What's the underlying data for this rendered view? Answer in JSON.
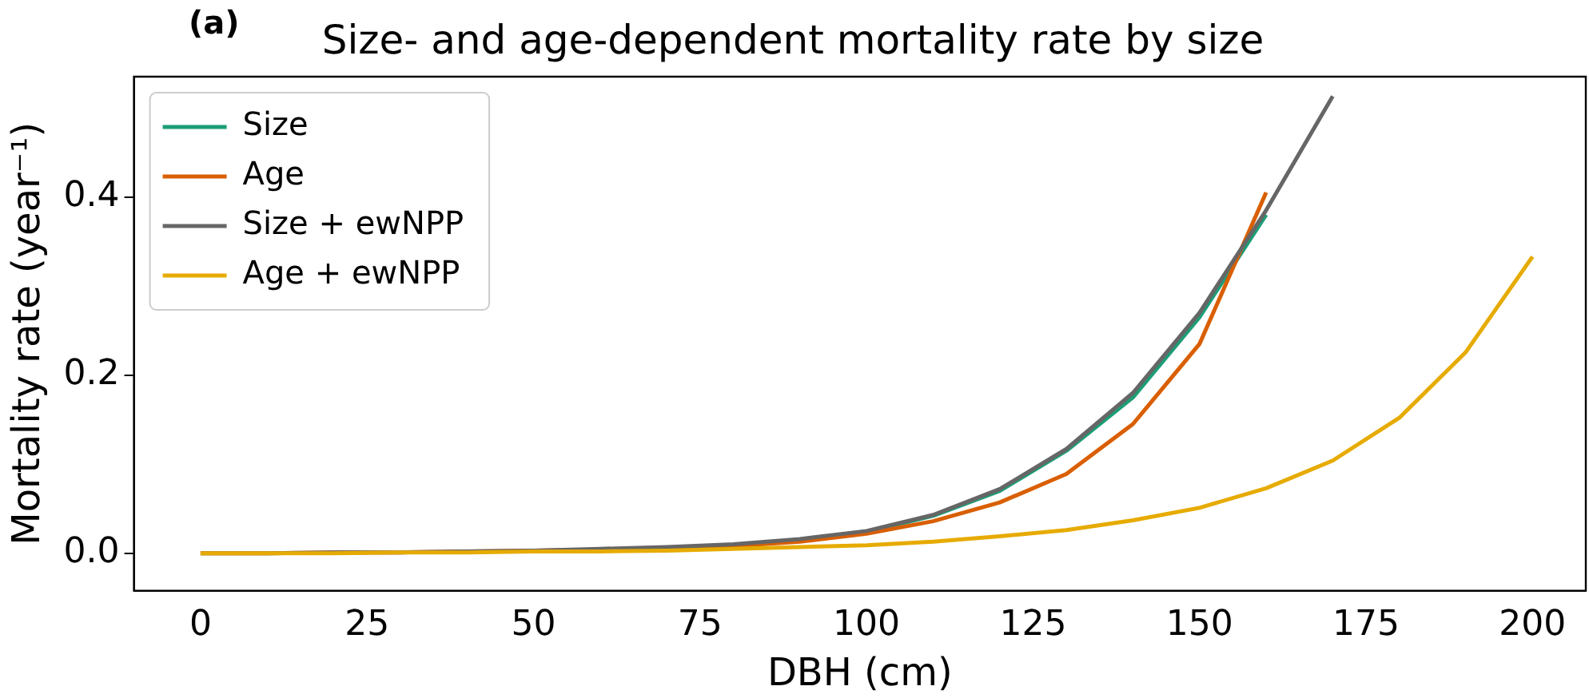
{
  "chart_data": {
    "type": "line",
    "title": "Size- and age-dependent mortality rate by size",
    "xlabel": "DBH (cm)",
    "ylabel": "Mortality rate (year⁻¹)",
    "annotations": [
      "(a)"
    ],
    "xlim": [
      -10,
      208
    ],
    "xticks": [
      0,
      25,
      50,
      75,
      100,
      125,
      150,
      175,
      200
    ],
    "ylim": [
      -0.042,
      0.535
    ],
    "yticks": [
      {
        "value": 0,
        "label": "0.0"
      },
      {
        "value": 0.2,
        "label": "0.2"
      },
      {
        "value": 0.4,
        "label": "0.4"
      }
    ],
    "grid": false,
    "legend": "top left",
    "marker": "none",
    "line_style": "solid",
    "series": [
      {
        "name": "Size",
        "color": "#1b9e77",
        "x": [
          100,
          110,
          120,
          130,
          140,
          150,
          160
        ],
        "values": [
          0.024,
          0.042,
          0.07,
          0.115,
          0.175,
          0.265,
          0.38
        ]
      },
      {
        "name": "Age",
        "color": "#d95f02",
        "x": [
          0,
          10,
          20,
          30,
          40,
          50,
          60,
          70,
          80,
          90,
          100,
          110,
          120,
          130,
          140,
          150,
          160
        ],
        "values": [
          0,
          0,
          0.001,
          0.001,
          0.002,
          0.003,
          0.004,
          0.006,
          0.008,
          0.013,
          0.022,
          0.036,
          0.057,
          0.089,
          0.145,
          0.235,
          0.405
        ]
      },
      {
        "name": "Size + ewNPP",
        "color": "#666666",
        "x": [
          0,
          10,
          20,
          30,
          40,
          50,
          60,
          70,
          80,
          90,
          100,
          110,
          120,
          130,
          140,
          150,
          160,
          170
        ],
        "values": [
          0,
          0,
          0.001,
          0.001,
          0.002,
          0.003,
          0.005,
          0.007,
          0.01,
          0.016,
          0.025,
          0.043,
          0.072,
          0.117,
          0.18,
          0.27,
          0.385,
          0.513
        ]
      },
      {
        "name": "Age + ewNPP",
        "color": "#e6ab02",
        "x": [
          0,
          10,
          20,
          30,
          40,
          50,
          60,
          70,
          80,
          90,
          100,
          110,
          120,
          130,
          140,
          150,
          160,
          170,
          180,
          190,
          200
        ],
        "values": [
          0,
          0,
          0,
          0.001,
          0.001,
          0.002,
          0.002,
          0.003,
          0.005,
          0.007,
          0.009,
          0.013,
          0.019,
          0.026,
          0.037,
          0.051,
          0.073,
          0.104,
          0.152,
          0.226,
          0.333
        ]
      }
    ]
  }
}
